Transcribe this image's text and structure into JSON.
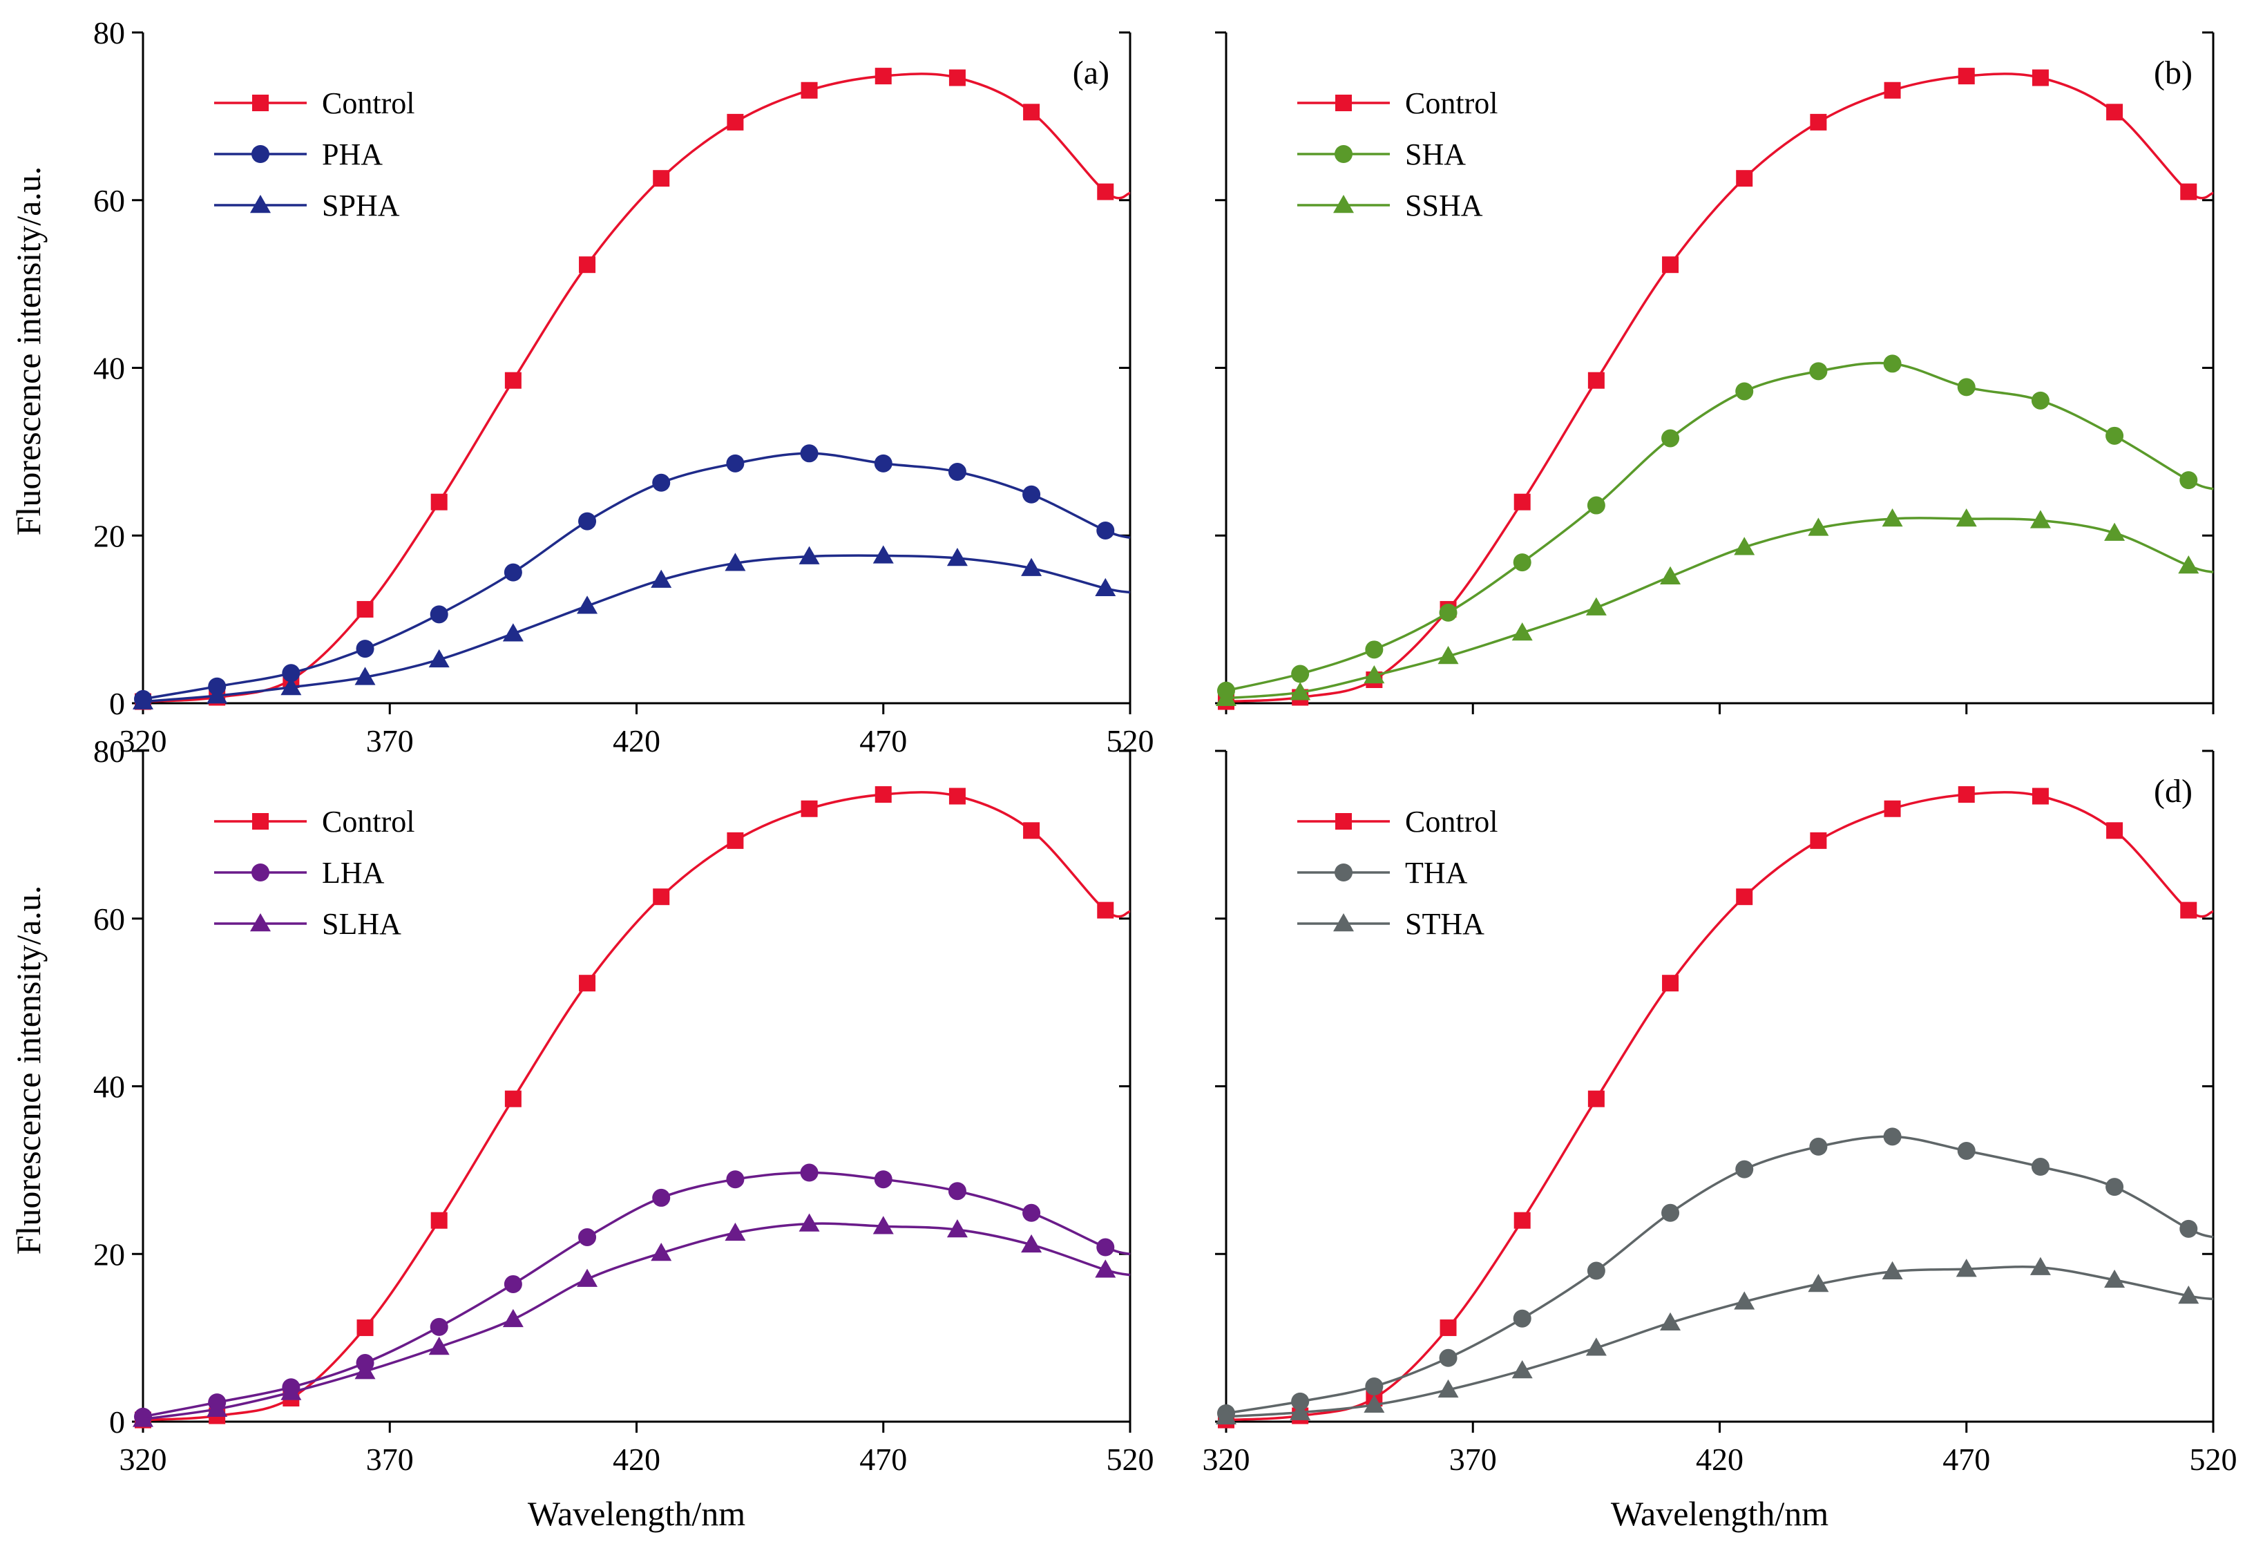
{
  "figure": {
    "y_axis_title": "Fluorescence intensity/a.u.",
    "x_axis_title": "Wavelength/nm"
  },
  "colors": {
    "control": "#e8112d",
    "panel_a": "#1f2b8a",
    "panel_b": "#5a9a2a",
    "panel_c": "#6a1b8a",
    "panel_d": "#5f6668"
  },
  "chart_data": [
    {
      "type": "line",
      "panel_label": "(a)",
      "xlabel": "",
      "ylabel": "Fluorescence intensity/a.u.",
      "xlim": [
        320,
        520
      ],
      "ylim": [
        0,
        80
      ],
      "x_ticks": [
        "320",
        "370",
        "420",
        "470",
        "520"
      ],
      "y_ticks": [
        "0",
        "20",
        "40",
        "60",
        "80"
      ],
      "legend_position": "top-left",
      "x": [
        320,
        335,
        350,
        365,
        380,
        395,
        410,
        425,
        440,
        455,
        470,
        485,
        500,
        515
      ],
      "series": [
        {
          "name": "Control",
          "marker": "square",
          "values": [
            0.2,
            0.7,
            2.8,
            11.2,
            24.0,
            38.5,
            52.3,
            62.6,
            69.3,
            73.1,
            74.8,
            74.6,
            70.5,
            61.0
          ]
        },
        {
          "name": "PHA",
          "marker": "circle",
          "values": [
            0.5,
            2.0,
            3.6,
            6.5,
            10.6,
            15.6,
            21.7,
            26.3,
            28.6,
            29.8,
            28.6,
            27.6,
            24.9,
            20.6
          ]
        },
        {
          "name": "SPHA",
          "marker": "triangle",
          "values": [
            0.2,
            0.9,
            1.9,
            3.1,
            5.2,
            8.3,
            11.6,
            14.7,
            16.7,
            17.5,
            17.6,
            17.3,
            16.1,
            13.7
          ]
        }
      ]
    },
    {
      "type": "line",
      "panel_label": "(b)",
      "xlabel": "",
      "ylabel": "",
      "xlim": [
        320,
        520
      ],
      "ylim": [
        0,
        80
      ],
      "x_ticks": [],
      "y_ticks": [],
      "legend_position": "top-left",
      "x": [
        320,
        335,
        350,
        365,
        380,
        395,
        410,
        425,
        440,
        455,
        470,
        485,
        500,
        515
      ],
      "series": [
        {
          "name": "Control",
          "marker": "square",
          "values": [
            0.2,
            0.7,
            2.8,
            11.2,
            24.0,
            38.5,
            52.3,
            62.6,
            69.3,
            73.1,
            74.8,
            74.6,
            70.5,
            61.0
          ]
        },
        {
          "name": "SHA",
          "marker": "circle",
          "values": [
            1.5,
            3.5,
            6.4,
            10.8,
            16.8,
            23.6,
            31.6,
            37.2,
            39.6,
            40.5,
            37.7,
            36.1,
            31.9,
            26.6
          ]
        },
        {
          "name": "SSHA",
          "marker": "triangle",
          "values": [
            0.6,
            1.3,
            3.3,
            5.6,
            8.4,
            11.4,
            15.1,
            18.6,
            20.9,
            22.0,
            22.0,
            21.8,
            20.3,
            16.4
          ]
        }
      ]
    },
    {
      "type": "line",
      "panel_label": "",
      "xlabel": "Wavelength/nm",
      "ylabel": "Fluorescence intensity/a.u.",
      "xlim": [
        320,
        520
      ],
      "ylim": [
        0,
        80
      ],
      "x_ticks": [
        "320",
        "370",
        "420",
        "470",
        "520"
      ],
      "y_ticks": [
        "0",
        "20",
        "40",
        "60",
        "80"
      ],
      "legend_position": "top-left",
      "x": [
        320,
        335,
        350,
        365,
        380,
        395,
        410,
        425,
        440,
        455,
        470,
        485,
        500,
        515
      ],
      "series": [
        {
          "name": "Control",
          "marker": "square",
          "values": [
            0.2,
            0.7,
            2.8,
            11.2,
            24.0,
            38.5,
            52.3,
            62.6,
            69.3,
            73.1,
            74.8,
            74.6,
            70.5,
            61.0
          ]
        },
        {
          "name": "LHA",
          "marker": "circle",
          "values": [
            0.6,
            2.3,
            4.1,
            7.0,
            11.3,
            16.4,
            22.0,
            26.7,
            28.9,
            29.7,
            28.9,
            27.5,
            24.9,
            20.8
          ]
        },
        {
          "name": "SLHA",
          "marker": "triangle",
          "values": [
            0.3,
            1.5,
            3.5,
            6.0,
            8.9,
            12.2,
            17.0,
            20.1,
            22.5,
            23.6,
            23.3,
            22.9,
            21.1,
            18.1
          ]
        }
      ]
    },
    {
      "type": "line",
      "panel_label": "(d)",
      "xlabel": "Wavelength/nm",
      "ylabel": "",
      "xlim": [
        320,
        520
      ],
      "ylim": [
        0,
        80
      ],
      "x_ticks": [
        "320",
        "370",
        "420",
        "470",
        "520"
      ],
      "y_ticks": [],
      "legend_position": "top-left",
      "x": [
        320,
        335,
        350,
        365,
        380,
        395,
        410,
        425,
        440,
        455,
        470,
        485,
        500,
        515
      ],
      "series": [
        {
          "name": "Control",
          "marker": "square",
          "values": [
            0.2,
            0.7,
            2.8,
            11.2,
            24.0,
            38.5,
            52.3,
            62.6,
            69.3,
            73.1,
            74.8,
            74.6,
            70.5,
            61.0
          ]
        },
        {
          "name": "THA",
          "marker": "circle",
          "values": [
            1.0,
            2.4,
            4.2,
            7.6,
            12.3,
            18.0,
            24.9,
            30.1,
            32.8,
            34.0,
            32.3,
            30.4,
            28.0,
            23.0
          ]
        },
        {
          "name": "STHA",
          "marker": "triangle",
          "values": [
            0.6,
            1.1,
            2.0,
            3.8,
            6.1,
            8.8,
            11.8,
            14.3,
            16.4,
            17.9,
            18.2,
            18.4,
            16.9,
            15.0
          ]
        }
      ]
    }
  ]
}
